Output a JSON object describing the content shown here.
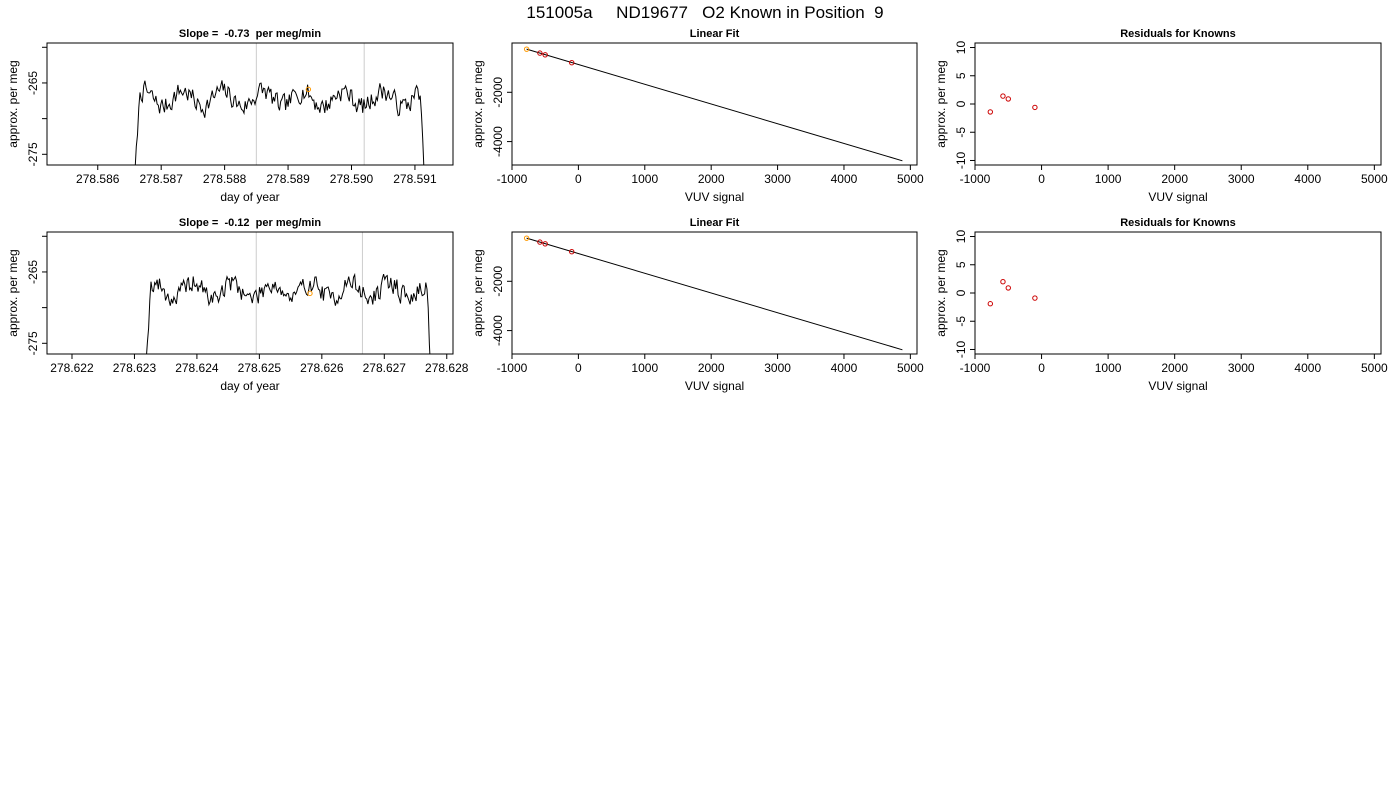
{
  "page_title": "151005a     ND19677   O2 Known in Position  9",
  "chart_data": [
    {
      "type": "line",
      "title": "Slope =  -0.73  per meg/min",
      "xlabel": "day of year",
      "ylabel": "approx. per meg",
      "xlim": [
        278.5852,
        278.5916
      ],
      "ylim": [
        -276.5,
        -259.4
      ],
      "xticks": [
        "278.586",
        "278.587",
        "278.588",
        "278.589",
        "278.590",
        "278.591"
      ],
      "yticks": [
        "-275",
        "-270",
        "-265",
        "-260"
      ],
      "ytick_labels_shown": [
        "-275",
        "-265"
      ],
      "grid": false,
      "vlines_x": [
        278.5885,
        278.5902
      ],
      "vline_color": "#cccccc",
      "line_color": "#000000",
      "series_window": [
        278.58655,
        278.59118
      ],
      "series_baseline": -267.2,
      "series_seed": 7,
      "highlight_points": [
        {
          "x": 278.58932,
          "y": -265.9,
          "color": "#ff9900"
        }
      ]
    },
    {
      "type": "scatter",
      "title": "Linear Fit",
      "xlabel": "VUV signal",
      "ylabel": "approx. per meg",
      "xlim": [
        -1000,
        5100
      ],
      "ylim": [
        -4950,
        0
      ],
      "xticks": [
        "-1000",
        "0",
        "1000",
        "2000",
        "3000",
        "4000",
        "5000"
      ],
      "yticks": [
        "-4000",
        "-2000"
      ],
      "fit_line": [
        [
          -780,
          -250
        ],
        [
          4880,
          -4780
        ]
      ],
      "points": [
        {
          "x": -780,
          "y": -250,
          "color": "#ff9900"
        },
        {
          "x": -580,
          "y": -410,
          "color": "#cc0000"
        },
        {
          "x": -500,
          "y": -480,
          "color": "#cc0000"
        },
        {
          "x": -100,
          "y": -800,
          "color": "#cc0000"
        }
      ]
    },
    {
      "type": "scatter",
      "title": "Residuals for Knowns",
      "xlabel": "VUV signal",
      "ylabel": "approx. per meg",
      "xlim": [
        -1000,
        5100
      ],
      "ylim": [
        -10.8,
        10.8
      ],
      "xticks": [
        "-1000",
        "0",
        "1000",
        "2000",
        "3000",
        "4000",
        "5000"
      ],
      "yticks": [
        "-10",
        "-5",
        "0",
        "5",
        "10"
      ],
      "points": [
        {
          "x": -770,
          "y": -1.4,
          "color": "#cc0000"
        },
        {
          "x": -580,
          "y": 1.4,
          "color": "#cc0000"
        },
        {
          "x": -500,
          "y": 0.9,
          "color": "#cc0000"
        },
        {
          "x": -100,
          "y": -0.6,
          "color": "#cc0000"
        }
      ]
    },
    {
      "type": "line",
      "title": "Slope =  -0.12  per meg/min",
      "xlabel": "day of year",
      "ylabel": "approx. per meg",
      "xlim": [
        278.6216,
        278.6281
      ],
      "ylim": [
        -276.5,
        -259.4
      ],
      "xticks": [
        "278.622",
        "278.623",
        "278.624",
        "278.625",
        "278.626",
        "278.627",
        "278.628"
      ],
      "yticks": [
        "-275",
        "-270",
        "-265",
        "-260"
      ],
      "ytick_labels_shown": [
        "-275",
        "-265"
      ],
      "grid": false,
      "vlines_x": [
        278.62495,
        278.62665
      ],
      "vline_color": "#cccccc",
      "line_color": "#000000",
      "series_window": [
        278.62315,
        278.62778
      ],
      "series_baseline": -267.6,
      "series_seed": 19,
      "highlight_points": [
        {
          "x": 278.62581,
          "y": -268.0,
          "color": "#ff9900"
        }
      ]
    },
    {
      "type": "scatter",
      "title": "Linear Fit",
      "xlabel": "VUV signal",
      "ylabel": "approx. per meg",
      "xlim": [
        -1000,
        5100
      ],
      "ylim": [
        -4950,
        0
      ],
      "xticks": [
        "-1000",
        "0",
        "1000",
        "2000",
        "3000",
        "4000",
        "5000"
      ],
      "yticks": [
        "-4000",
        "-2000"
      ],
      "fit_line": [
        [
          -780,
          -250
        ],
        [
          4880,
          -4780
        ]
      ],
      "points": [
        {
          "x": -780,
          "y": -250,
          "color": "#ff9900"
        },
        {
          "x": -580,
          "y": -410,
          "color": "#cc0000"
        },
        {
          "x": -500,
          "y": -480,
          "color": "#cc0000"
        },
        {
          "x": -100,
          "y": -800,
          "color": "#cc0000"
        }
      ]
    },
    {
      "type": "scatter",
      "title": "Residuals for Knowns",
      "xlabel": "VUV signal",
      "ylabel": "approx. per meg",
      "xlim": [
        -1000,
        5100
      ],
      "ylim": [
        -10.8,
        10.8
      ],
      "xticks": [
        "-1000",
        "0",
        "1000",
        "2000",
        "3000",
        "4000",
        "5000"
      ],
      "yticks": [
        "-10",
        "-5",
        "0",
        "5",
        "10"
      ],
      "points": [
        {
          "x": -770,
          "y": -1.9,
          "color": "#cc0000"
        },
        {
          "x": -580,
          "y": 2.0,
          "color": "#cc0000"
        },
        {
          "x": -500,
          "y": 0.9,
          "color": "#cc0000"
        },
        {
          "x": -100,
          "y": -0.9,
          "color": "#cc0000"
        }
      ]
    }
  ]
}
